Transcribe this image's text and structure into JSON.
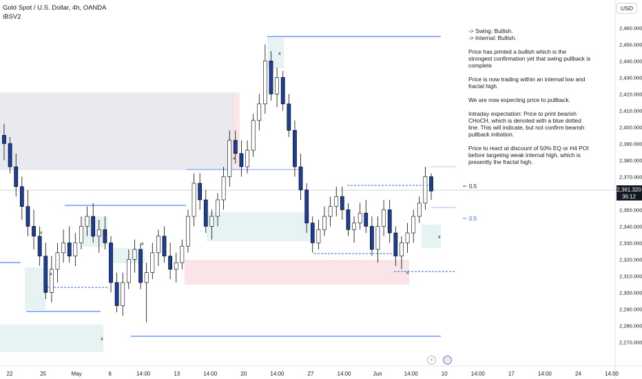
{
  "header": {
    "title": "Gold Spot / U.S. Dollar, 4h, OANDA",
    "indicator": "iBSV2",
    "currency": "USD"
  },
  "price_axis": {
    "ticks": [
      "2,460.000",
      "2,450.000",
      "2,440.000",
      "2,430.000",
      "2,420.000",
      "2,410.000",
      "2,400.000",
      "2,390.000",
      "2,380.000",
      "2,370.000",
      "2,360.000",
      "2,350.000",
      "2,340.000",
      "2,330.000",
      "2,320.000",
      "2,310.000",
      "2,300.000",
      "2,290.000",
      "2,280.000",
      "2,270.000"
    ],
    "current_price": "2,361.320",
    "countdown": "36:12"
  },
  "time_axis": {
    "ticks": [
      "22",
      "25",
      "May",
      "6",
      "14:00",
      "13",
      "14:00",
      "20",
      "14:00",
      "27",
      "14:00",
      "Jun",
      "14:00",
      "10",
      "14:00",
      "17",
      "14:00",
      "24",
      "14:00"
    ]
  },
  "annotations": {
    "fib_upper": "0.5",
    "fib_lower": "0.5",
    "markers": [
      "4",
      "4",
      "4",
      "4",
      "4",
      "4",
      "4",
      "4",
      "4",
      "4"
    ]
  },
  "notes": {
    "swing": "-> Swing:  Bullish.",
    "internal": "-> Internal:  Bullish.",
    "p1": "Price has printed a bullish which is the strongest confirmation yet that swing pullback is complete",
    "p2": "Price is now trading within an internal low and fractal high.",
    "p3": "We are now expecting price to pullback.",
    "p4": "Intraday expectation:  Price to print bearish CHoCH, which is denoted with a blue dotted line.  This will indicate, but not confirm bearish pullback initiation.",
    "p5": "Price to react at discount of 50% EQ or H4 POI before targeting weak internal high, which is presently the fractal high."
  },
  "colors": {
    "bull_candle": "#ffffff",
    "bear_candle": "#1c3f95",
    "wick": "#000000",
    "structure_line": "#2962ff",
    "grey_zone": "#e0e3eb",
    "pink_zone": "#f8e1e4",
    "teal_zone": "#e6f3f2",
    "price_label_bg": "#131722"
  },
  "chart_data": {
    "type": "candlestick",
    "symbol": "Gold Spot / U.S. Dollar",
    "timeframe": "4h",
    "ylim": [
      2266,
      2466
    ],
    "last_price": 2361.32,
    "ohlc": [
      [
        2395,
        2402,
        2380,
        2390
      ],
      [
        2390,
        2394,
        2372,
        2376
      ],
      [
        2376,
        2384,
        2358,
        2364
      ],
      [
        2364,
        2370,
        2344,
        2352
      ],
      [
        2352,
        2362,
        2334,
        2340
      ],
      [
        2340,
        2350,
        2326,
        2334
      ],
      [
        2334,
        2340,
        2316,
        2322
      ],
      [
        2322,
        2330,
        2296,
        2300
      ],
      [
        2300,
        2322,
        2294,
        2314
      ],
      [
        2314,
        2330,
        2306,
        2324
      ],
      [
        2324,
        2338,
        2318,
        2330
      ],
      [
        2330,
        2340,
        2318,
        2322
      ],
      [
        2322,
        2336,
        2316,
        2330
      ],
      [
        2330,
        2346,
        2326,
        2340
      ],
      [
        2340,
        2352,
        2334,
        2346
      ],
      [
        2346,
        2354,
        2330,
        2334
      ],
      [
        2334,
        2344,
        2324,
        2338
      ],
      [
        2338,
        2346,
        2326,
        2330
      ],
      [
        2330,
        2334,
        2300,
        2306
      ],
      [
        2306,
        2312,
        2288,
        2292
      ],
      [
        2292,
        2312,
        2286,
        2306
      ],
      [
        2306,
        2326,
        2302,
        2320
      ],
      [
        2320,
        2332,
        2312,
        2326
      ],
      [
        2326,
        2330,
        2302,
        2306
      ],
      [
        2306,
        2318,
        2282,
        2312
      ],
      [
        2312,
        2330,
        2308,
        2324
      ],
      [
        2324,
        2338,
        2316,
        2334
      ],
      [
        2334,
        2340,
        2318,
        2322
      ],
      [
        2322,
        2330,
        2308,
        2314
      ],
      [
        2314,
        2324,
        2306,
        2318
      ],
      [
        2318,
        2332,
        2314,
        2328
      ],
      [
        2328,
        2350,
        2324,
        2346
      ],
      [
        2346,
        2372,
        2340,
        2366
      ],
      [
        2366,
        2372,
        2350,
        2356
      ],
      [
        2356,
        2362,
        2336,
        2340
      ],
      [
        2340,
        2350,
        2332,
        2346
      ],
      [
        2346,
        2360,
        2340,
        2356
      ],
      [
        2356,
        2376,
        2350,
        2370
      ],
      [
        2370,
        2398,
        2364,
        2392
      ],
      [
        2392,
        2398,
        2378,
        2384
      ],
      [
        2384,
        2392,
        2370,
        2376
      ],
      [
        2376,
        2392,
        2372,
        2386
      ],
      [
        2386,
        2408,
        2382,
        2404
      ],
      [
        2404,
        2420,
        2398,
        2414
      ],
      [
        2414,
        2450,
        2408,
        2440
      ],
      [
        2440,
        2446,
        2416,
        2420
      ],
      [
        2420,
        2436,
        2412,
        2430
      ],
      [
        2430,
        2434,
        2410,
        2414
      ],
      [
        2414,
        2420,
        2394,
        2398
      ],
      [
        2398,
        2404,
        2370,
        2376
      ],
      [
        2376,
        2384,
        2356,
        2362
      ],
      [
        2362,
        2366,
        2336,
        2342
      ],
      [
        2342,
        2346,
        2324,
        2330
      ],
      [
        2330,
        2344,
        2326,
        2338
      ],
      [
        2338,
        2352,
        2334,
        2346
      ],
      [
        2346,
        2358,
        2340,
        2352
      ],
      [
        2352,
        2364,
        2346,
        2358
      ],
      [
        2358,
        2364,
        2344,
        2350
      ],
      [
        2350,
        2354,
        2334,
        2338
      ],
      [
        2338,
        2346,
        2330,
        2342
      ],
      [
        2342,
        2354,
        2338,
        2348
      ],
      [
        2348,
        2356,
        2336,
        2340
      ],
      [
        2340,
        2346,
        2322,
        2326
      ],
      [
        2326,
        2346,
        2318,
        2340
      ],
      [
        2340,
        2356,
        2334,
        2350
      ],
      [
        2350,
        2356,
        2330,
        2336
      ],
      [
        2336,
        2340,
        2316,
        2322
      ],
      [
        2322,
        2334,
        2314,
        2330
      ],
      [
        2330,
        2342,
        2324,
        2336
      ],
      [
        2336,
        2350,
        2330,
        2346
      ],
      [
        2346,
        2358,
        2342,
        2354
      ],
      [
        2354,
        2376,
        2350,
        2370
      ],
      [
        2370,
        2372,
        2356,
        2361.32
      ]
    ]
  }
}
